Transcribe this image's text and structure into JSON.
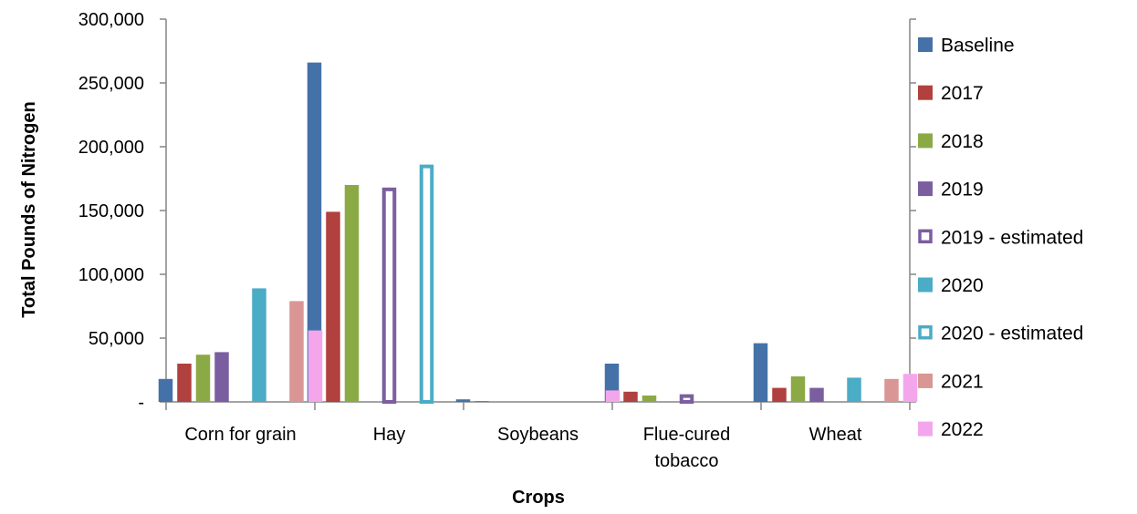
{
  "chart_data": {
    "type": "bar",
    "title": "",
    "xlabel": "Crops",
    "ylabel": "Total Pounds of Nitrogen",
    "ylim": [
      0,
      300000
    ],
    "y_ticks": [
      0,
      50000,
      100000,
      150000,
      200000,
      250000,
      300000
    ],
    "y_tick_labels": [
      "-",
      "50,000",
      "100,000",
      "150,000",
      "200,000",
      "250,000",
      "300,000"
    ],
    "categories": [
      "Corn for grain",
      "Hay",
      "Soybeans",
      "Flue-cured tobacco",
      "Wheat"
    ],
    "category_label_lines": [
      [
        "Corn for grain"
      ],
      [
        "Hay"
      ],
      [
        "Soybeans"
      ],
      [
        "Flue-cured",
        "tobacco"
      ],
      [
        "Wheat"
      ]
    ],
    "grid": false,
    "legend_position": "right",
    "series": [
      {
        "name": "Baseline",
        "color": "#4472A8",
        "style": "solid",
        "values": [
          18000,
          266000,
          2000,
          30000,
          46000
        ]
      },
      {
        "name": "2017",
        "color": "#B0413E",
        "style": "solid",
        "values": [
          30000,
          149000,
          500,
          8000,
          11000
        ]
      },
      {
        "name": "2018",
        "color": "#8BAA46",
        "style": "solid",
        "values": [
          37000,
          170000,
          0,
          5000,
          20000
        ]
      },
      {
        "name": "2019",
        "color": "#7B5EA0",
        "style": "solid",
        "values": [
          39000,
          0,
          0,
          0,
          11000
        ]
      },
      {
        "name": "2019 - estimated",
        "color": "#7B5EA0",
        "style": "outline",
        "values": [
          0,
          168000,
          0,
          6000,
          0
        ]
      },
      {
        "name": "2020",
        "color": "#4BACC6",
        "style": "solid",
        "values": [
          89000,
          0,
          0,
          0,
          19000
        ]
      },
      {
        "name": "2020 - estimated",
        "color": "#4BACC6",
        "style": "outline",
        "values": [
          0,
          186000,
          0,
          0,
          0
        ]
      },
      {
        "name": "2021",
        "color": "#D99694",
        "style": "solid",
        "values": [
          79000,
          0,
          0,
          0,
          18000
        ]
      },
      {
        "name": "2022",
        "color": "#F4A6EC",
        "style": "solid",
        "values": [
          56000,
          0,
          9000,
          0,
          22000
        ]
      }
    ]
  }
}
